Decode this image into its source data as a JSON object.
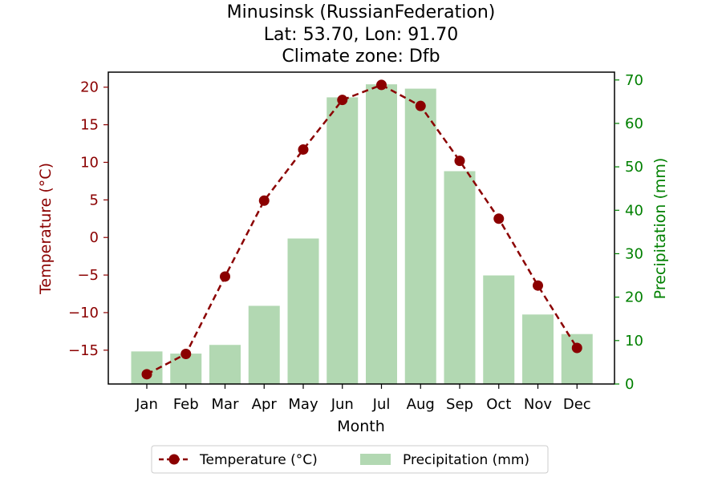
{
  "chart_data": {
    "type": "bar+line",
    "title_lines": [
      "Minusinsk (RussianFederation)",
      "Lat: 53.70, Lon: 91.70",
      "Climate zone: Dfb"
    ],
    "xlabel": "Month",
    "ylabel_left": "Temperature (°C)",
    "ylabel_right": "Precipitation (mm)",
    "categories": [
      "Jan",
      "Feb",
      "Mar",
      "Apr",
      "May",
      "Jun",
      "Jul",
      "Aug",
      "Sep",
      "Oct",
      "Nov",
      "Dec"
    ],
    "temperature": {
      "name": "Temperature (°C)",
      "color": "#8b0000",
      "values": [
        -18.2,
        -15.5,
        -5.2,
        4.9,
        11.7,
        18.3,
        20.3,
        17.5,
        10.2,
        2.5,
        -6.4,
        -14.7
      ],
      "ylim": [
        -19.5,
        22
      ],
      "yticks": [
        20,
        15,
        10,
        5,
        0,
        -5,
        -10,
        -15
      ],
      "ytick_labels": [
        "20",
        "15",
        "10",
        "5",
        "0",
        "−5",
        "−10",
        "−15"
      ]
    },
    "precipitation": {
      "name": "Precipitation (mm)",
      "color": "#b2d8b2",
      "axis_color": "#008000",
      "values": [
        7.5,
        7,
        9,
        18,
        33.5,
        66,
        69,
        68,
        49,
        25,
        16,
        11.5
      ],
      "ylim": [
        0,
        71.8
      ],
      "yticks": [
        0,
        10,
        20,
        30,
        40,
        50,
        60,
        70
      ],
      "ytick_labels": [
        "0",
        "10",
        "20",
        "30",
        "40",
        "50",
        "60",
        "70"
      ]
    },
    "legend": {
      "position": "bottom-center",
      "entries": [
        "Temperature (°C)",
        "Precipitation (mm)"
      ]
    },
    "grid": false
  }
}
